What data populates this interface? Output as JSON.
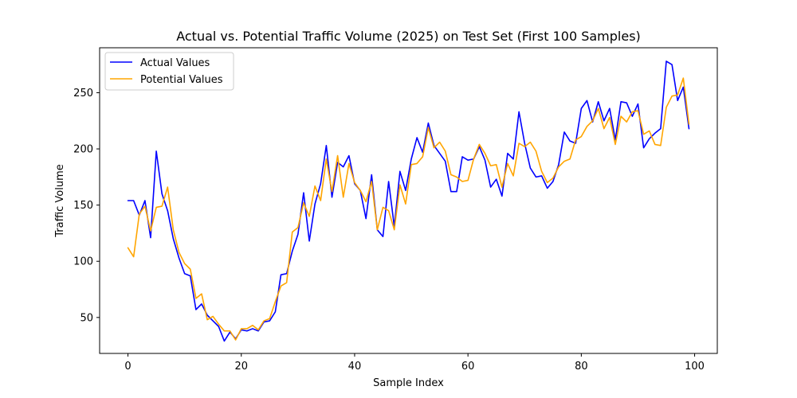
{
  "chart_data": {
    "type": "line",
    "title": "Actual vs. Potential Traffic Volume (2025) on Test Set (First 100 Samples)",
    "xlabel": "Sample Index",
    "ylabel": "Traffic Volume",
    "xlim": [
      -5,
      104
    ],
    "ylim": [
      18,
      290
    ],
    "xticks": [
      0,
      20,
      40,
      60,
      80,
      100
    ],
    "yticks": [
      50,
      100,
      150,
      200,
      250
    ],
    "grid": false,
    "legend_position": "top-left",
    "x": [
      0,
      1,
      2,
      3,
      4,
      5,
      6,
      7,
      8,
      9,
      10,
      11,
      12,
      13,
      14,
      15,
      16,
      17,
      18,
      19,
      20,
      21,
      22,
      23,
      24,
      25,
      26,
      27,
      28,
      29,
      30,
      31,
      32,
      33,
      34,
      35,
      36,
      37,
      38,
      39,
      40,
      41,
      42,
      43,
      44,
      45,
      46,
      47,
      48,
      49,
      50,
      51,
      52,
      53,
      54,
      55,
      56,
      57,
      58,
      59,
      60,
      61,
      62,
      63,
      64,
      65,
      66,
      67,
      68,
      69,
      70,
      71,
      72,
      73,
      74,
      75,
      76,
      77,
      78,
      79,
      80,
      81,
      82,
      83,
      84,
      85,
      86,
      87,
      88,
      89,
      90,
      91,
      92,
      93,
      94,
      95,
      96,
      97,
      98,
      99
    ],
    "series": [
      {
        "name": "Actual Values",
        "color": "#0000ff",
        "values": [
          154,
          154,
          141,
          154,
          121,
          198,
          160,
          145,
          120,
          103,
          89,
          87,
          57,
          62,
          52,
          47,
          42,
          29,
          37,
          31,
          39,
          38,
          40,
          38,
          46,
          47,
          55,
          88,
          89,
          109,
          124,
          161,
          118,
          151,
          169,
          203,
          157,
          188,
          184,
          194,
          169,
          163,
          138,
          177,
          128,
          122,
          171,
          131,
          180,
          163,
          191,
          210,
          197,
          223,
          203,
          196,
          189,
          162,
          162,
          193,
          190,
          191,
          202,
          190,
          166,
          173,
          158,
          196,
          191,
          233,
          205,
          183,
          175,
          176,
          165,
          171,
          186,
          215,
          207,
          205,
          236,
          243,
          224,
          242,
          225,
          236,
          208,
          242,
          241,
          229,
          240,
          201,
          209,
          214,
          218,
          278,
          275,
          243,
          255,
          218
        ]
      },
      {
        "name": "Potential Values",
        "color": "#ffa500",
        "values": [
          112,
          104,
          142,
          149,
          127,
          148,
          149,
          166,
          128,
          108,
          98,
          93,
          67,
          71,
          48,
          51,
          44,
          38,
          38,
          30,
          40,
          40,
          43,
          39,
          47,
          49,
          64,
          78,
          81,
          126,
          130,
          152,
          140,
          167,
          154,
          191,
          162,
          194,
          157,
          187,
          170,
          163,
          153,
          171,
          128,
          148,
          145,
          128,
          168,
          151,
          186,
          187,
          193,
          219,
          201,
          206,
          198,
          177,
          175,
          171,
          172,
          191,
          204,
          196,
          185,
          186,
          166,
          187,
          176,
          205,
          202,
          206,
          198,
          180,
          170,
          174,
          184,
          189,
          191,
          208,
          211,
          220,
          225,
          236,
          218,
          228,
          204,
          229,
          224,
          233,
          234,
          213,
          216,
          204,
          203,
          237,
          247,
          248,
          263,
          222
        ]
      }
    ]
  }
}
